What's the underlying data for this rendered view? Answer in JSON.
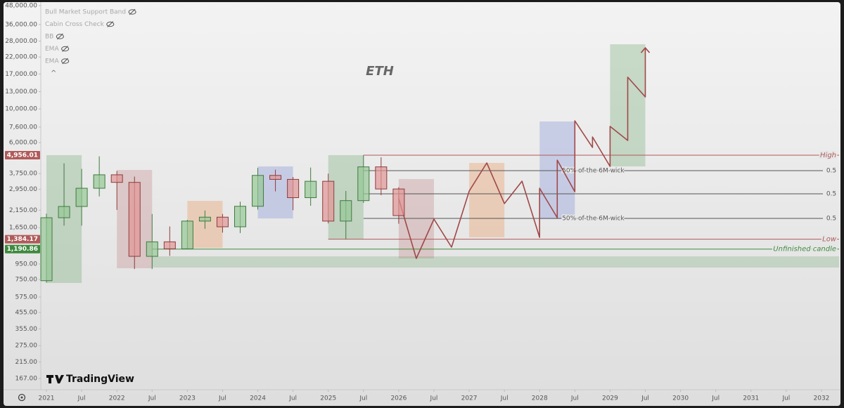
{
  "chart_data": {
    "type": "candlestick",
    "title": "ETH",
    "watermark": "TradingView",
    "indicators": [
      "Bull Market Support Band",
      "Cabin Cross Check",
      "BB",
      "EMA",
      "EMA"
    ],
    "log": true,
    "up_color": "#3f7a3f",
    "down_color": "#8e3b3b",
    "x": [
      2021,
      2021.25,
      2021.5,
      2021.75,
      2022,
      2022.25,
      2022.5,
      2022.75,
      2023,
      2023.25,
      2023.5,
      2023.75,
      2024,
      2024.25,
      2024.5,
      2024.75,
      2025,
      2025.25,
      2025.5,
      2025.75,
      2026
    ],
    "open": [
      737,
      1918,
      2275,
      3000,
      3680,
      3280,
      1067,
      1330,
      1196,
      1822,
      1934,
      1671,
      2282,
      3646,
      3433,
      2600,
      3335,
      1822,
      2486,
      4150,
      2967
    ],
    "high": [
      2040,
      4380,
      4027,
      4870,
      3900,
      3580,
      2030,
      1680,
      1857,
      2140,
      2030,
      2445,
      4090,
      3980,
      3560,
      4108,
      3745,
      2880,
      4956,
      4800,
      3050
    ],
    "low": [
      715,
      1700,
      1700,
      2650,
      2160,
      880,
      880,
      1075,
      1190,
      1620,
      1530,
      1520,
      2170,
      2860,
      2150,
      2300,
      1760,
      1385,
      2400,
      2700,
      1750
    ],
    "close": [
      1918,
      2275,
      3000,
      3680,
      3280,
      1067,
      1330,
      1196,
      1822,
      1934,
      1671,
      2282,
      3646,
      3433,
      2600,
      3335,
      1822,
      2486,
      4150,
      2967,
      1980
    ],
    "xlim": [
      2020.92,
      2032.25
    ],
    "xticks": [
      2021,
      {
        "value": 2021.5,
        "label": "Jul"
      },
      2022,
      {
        "value": 2022.5,
        "label": "Jul"
      },
      2023,
      {
        "value": 2023.5,
        "label": "Jul"
      },
      2024,
      {
        "value": 2024.5,
        "label": "Jul"
      },
      2025,
      {
        "value": 2025.5,
        "label": "Jul"
      },
      2026,
      {
        "value": 2026.5,
        "label": "Jul"
      },
      2027,
      {
        "value": 2027.5,
        "label": "Jul"
      },
      2028,
      {
        "value": 2028.5,
        "label": "Jul"
      },
      2029,
      {
        "value": 2029.5,
        "label": "Jul"
      },
      2030,
      {
        "value": 2030.5,
        "label": "Jul"
      },
      2031,
      {
        "value": 2031.5,
        "label": "Jul"
      },
      2032
    ],
    "ylim": [
      167,
      48000
    ],
    "yticks": [
      {
        "value": 48000,
        "label": "48,000.00"
      },
      {
        "value": 36000,
        "label": "36,000.00"
      },
      {
        "value": 28000,
        "label": "28,000.00"
      },
      {
        "value": 22000,
        "label": "22,000.00"
      },
      {
        "value": 17000,
        "label": "17,000.00"
      },
      {
        "value": 13000,
        "label": "13,000.00"
      },
      {
        "value": 10000,
        "label": "10,000.00"
      },
      {
        "value": 7600,
        "label": "7,600.00"
      },
      {
        "value": 6000,
        "label": "6,000.00"
      },
      {
        "value": 3750,
        "label": "3,750.00"
      },
      {
        "value": 2950,
        "label": "2,950.00"
      },
      {
        "value": 2150,
        "label": "2,150.00"
      },
      {
        "value": 1650,
        "label": "1,650.00"
      },
      {
        "value": 950,
        "label": "950.00"
      },
      {
        "value": 750,
        "label": "750.00"
      },
      {
        "value": 575,
        "label": "575.00"
      },
      {
        "value": 455,
        "label": "455.00"
      },
      {
        "value": 355,
        "label": "355.00"
      },
      {
        "value": 275,
        "label": "275.00"
      },
      {
        "value": 215,
        "label": "215.00"
      },
      {
        "value": 167,
        "label": "167.00"
      }
    ],
    "levels": [
      {
        "name": "High",
        "value": 4956.01,
        "label": "4,956.01",
        "x0": 2025.5,
        "color": "#b05a5a"
      },
      {
        "name": "Low",
        "value": 1384.17,
        "label": "1,384.17",
        "x0": 2025,
        "color": "#b05a5a"
      },
      {
        "name": "Unfinished candle",
        "value": 1190.86,
        "label": "1,190.86",
        "x0": 2022.5,
        "color": "#3f8a3f"
      }
    ],
    "fib_lines": [
      {
        "value": 3920,
        "ratio": 0.5,
        "text": "50% of the 6M wick",
        "x0": 2025.5
      },
      {
        "value": 2756,
        "ratio": 0.5,
        "x0": 2025.5
      },
      {
        "value": 1897,
        "ratio": 0.5,
        "text": "50% of the 6M wick",
        "x0": 2025.5
      }
    ],
    "zones": [
      {
        "x": [
          2021,
          2021.5
        ],
        "y": [
          712,
          4956
        ],
        "color": "rgba(80,150,80,0.26)"
      },
      {
        "x": [
          2022,
          2022.5
        ],
        "y": [
          891,
          3960
        ],
        "color": "rgba(170,70,70,0.2)"
      },
      {
        "x": [
          2023,
          2023.5
        ],
        "y": [
          1213,
          2477
        ],
        "color": "rgba(235,140,70,0.3)"
      },
      {
        "x": [
          2024,
          2024.5
        ],
        "y": [
          1897,
          4180
        ],
        "color": "rgba(90,110,210,0.25)"
      },
      {
        "x": [
          2025,
          2025.5
        ],
        "y": [
          1384,
          4956
        ],
        "color": "rgba(80,150,80,0.26)"
      },
      {
        "x": [
          2026,
          2026.5
        ],
        "y": [
          1034,
          3450
        ],
        "color": "rgba(170,70,70,0.2)"
      },
      {
        "x": [
          2027,
          2027.5
        ],
        "y": [
          1424,
          4407
        ],
        "color": "rgba(235,140,70,0.3)"
      },
      {
        "x": [
          2028,
          2028.5
        ],
        "y": [
          1878,
          8265
        ],
        "color": "rgba(90,110,210,0.25)"
      },
      {
        "x": [
          2029,
          2029.5
        ],
        "y": [
          4180,
          26700
        ],
        "color": "rgba(80,150,80,0.26)"
      },
      {
        "x": [
          2022.5,
          2032.25
        ],
        "y": [
          900,
          1067
        ],
        "color": "rgba(80,150,80,0.22)"
      }
    ],
    "projection": {
      "color": "#a04848",
      "x": [
        2026,
        2026.25,
        2026.5,
        2026.75,
        2027,
        2027.25,
        2027.5,
        2027.75,
        2028,
        2028,
        2028.25,
        2028.25,
        2028.5,
        2028.5,
        2028.75,
        2028.75,
        2029,
        2029,
        2029.25,
        2029.25,
        2029.5,
        2029.5
      ],
      "values": [
        2560,
        1034,
        1878,
        1226,
        2875,
        4407,
        2376,
        3341,
        1424,
        3000,
        1918,
        4600,
        2846,
        8350,
        5575,
        6536,
        4180,
        7670,
        6200,
        16190,
        12000,
        25300
      ]
    }
  }
}
